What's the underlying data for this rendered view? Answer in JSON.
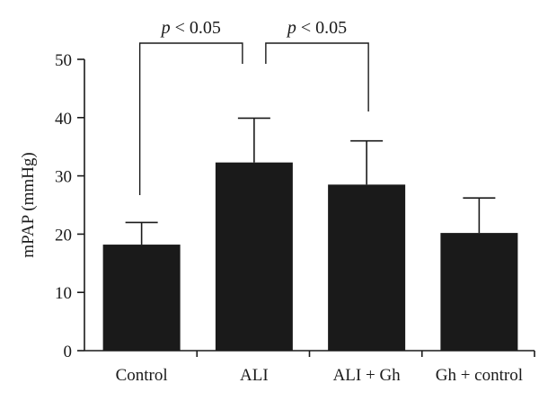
{
  "chart_data": {
    "type": "bar",
    "title": "",
    "xlabel": "",
    "ylabel": "mPAP (mmHg)",
    "ylim": [
      0,
      50
    ],
    "yticks": [
      0,
      10,
      20,
      30,
      40,
      50
    ],
    "categories": [
      "Control",
      "ALI",
      "ALI + Gh",
      "Gh + control"
    ],
    "values": [
      18.2,
      32.3,
      28.5,
      20.2
    ],
    "errors": [
      3.8,
      7.6,
      7.5,
      6.0
    ],
    "grid": false,
    "bar_color": "#1a1a1a",
    "annotations": [
      {
        "text": "p < 0.05",
        "italic_part": "p",
        "from": "Control",
        "to": "ALI"
      },
      {
        "text": "p < 0.05",
        "italic_part": "p",
        "from": "ALI",
        "to": "ALI + Gh"
      }
    ]
  }
}
